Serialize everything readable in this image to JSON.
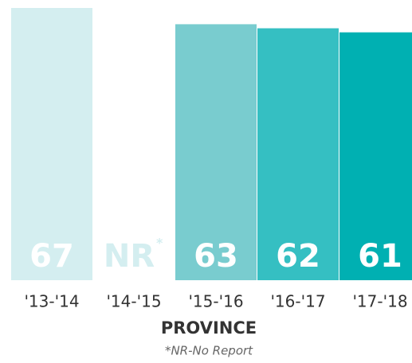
{
  "chart_data": {
    "type": "bar",
    "categories": [
      "'13-'14",
      "'14-'15",
      "'15-'16",
      "'16-'17",
      "'17-'18"
    ],
    "values": [
      67,
      null,
      63,
      62,
      61
    ],
    "value_labels": [
      "67",
      "NR",
      "63",
      "62",
      "61"
    ],
    "nr_marker": "*",
    "colors": [
      "#d4eef0",
      "#d4eef0",
      "#79cccf",
      "#35bfc2",
      "#00b0b2"
    ],
    "x_label": "PROVINCE",
    "footnote": "*NR-No Report"
  }
}
